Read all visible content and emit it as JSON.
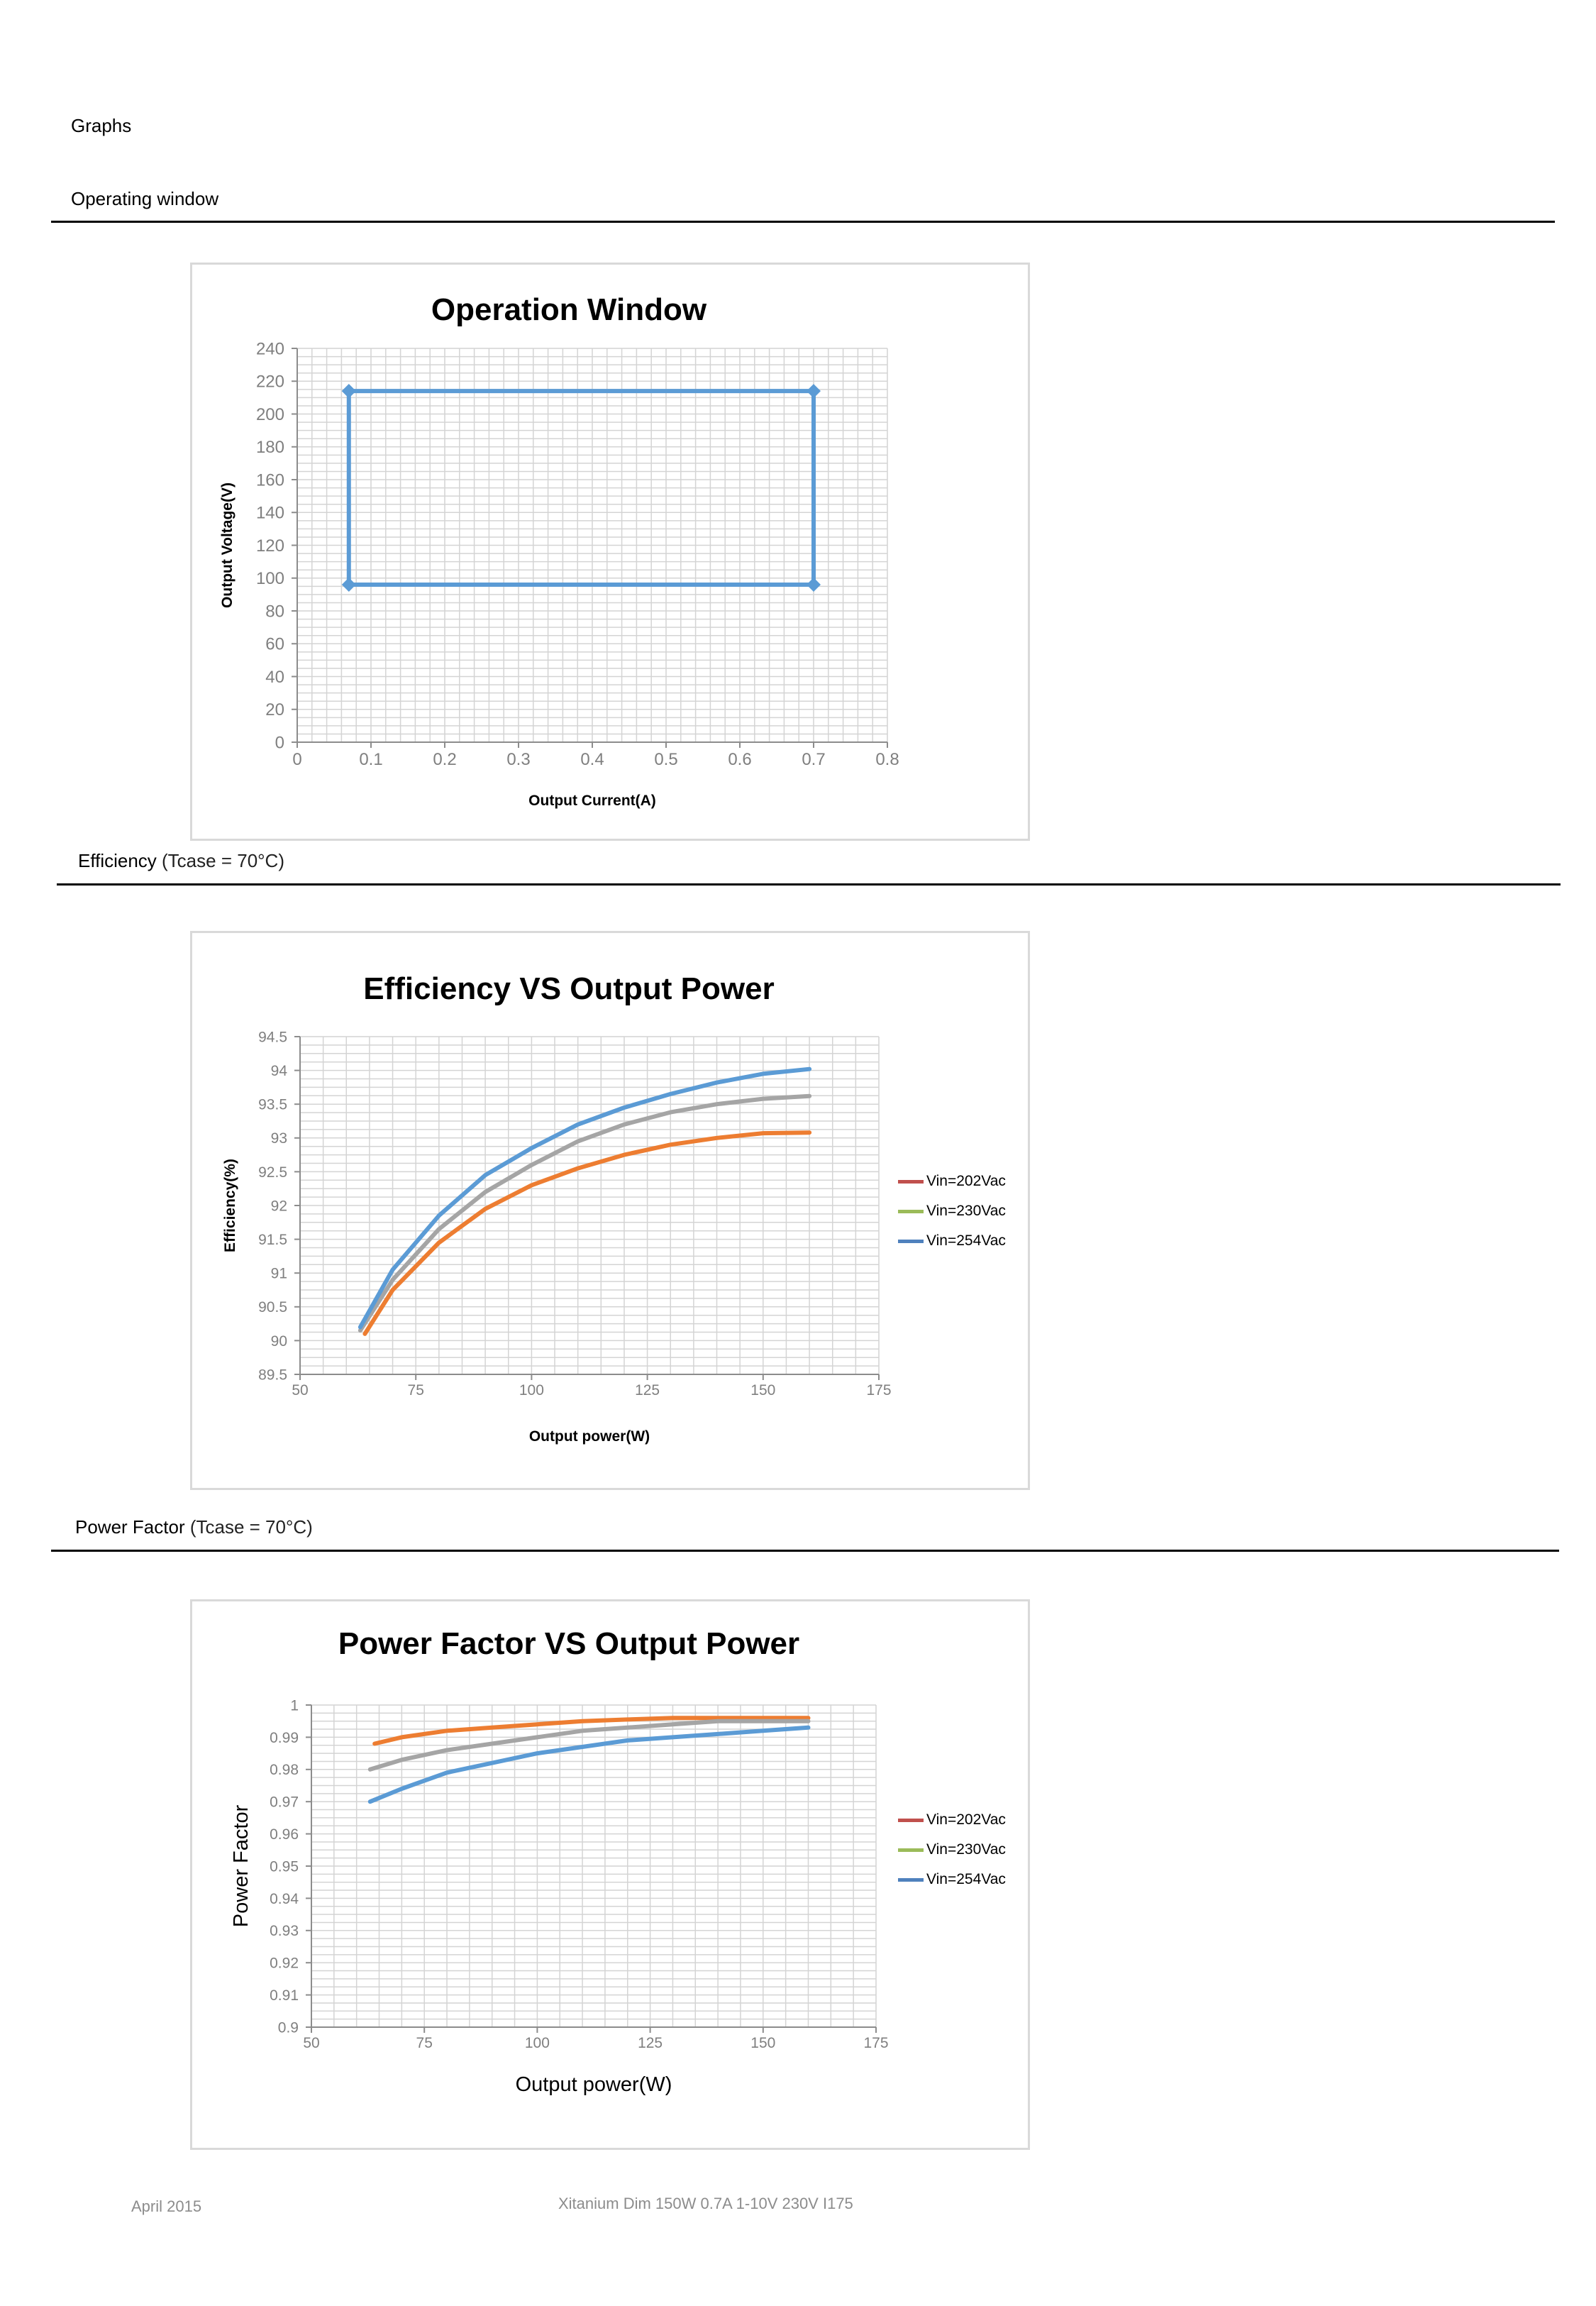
{
  "page": {
    "heading": "Graphs",
    "sections": [
      {
        "title": "Operating window",
        "note": ""
      },
      {
        "title": "Efficiency",
        "note": " (Tcase = 70°C)"
      },
      {
        "title": "Power Factor",
        "note": " (Tcase = 70°C)"
      }
    ],
    "footer": {
      "date": "April 2015",
      "product": "Xitanium Dim 150W 0.7A 1-10V 230V I175"
    }
  },
  "colors": {
    "grid": "#d4d4d4",
    "axis": "#8c8c8c",
    "tick_text": "#7f7f7f",
    "v202": "#ed7d31",
    "v230": "#a5a5a5",
    "v254": "#5b9bd5",
    "legend202": "#c0504d",
    "legend230": "#9bbb59",
    "legend254": "#4f81bd"
  },
  "chart_data": [
    {
      "type": "line",
      "title": "Operation Window",
      "xlabel": "Output Current(A)",
      "ylabel": "Output Voltage(V)",
      "xlim": [
        0,
        0.8
      ],
      "ylim": [
        0,
        240
      ],
      "xticks": [
        "0",
        "0.1",
        "0.2",
        "0.3",
        "0.4",
        "0.5",
        "0.6",
        "0.7",
        "0.8"
      ],
      "yticks": [
        "0",
        "20",
        "40",
        "60",
        "80",
        "100",
        "120",
        "140",
        "160",
        "180",
        "200",
        "220",
        "240"
      ],
      "grid": true,
      "legend": "none",
      "series": [
        {
          "color": "#5b9bd5",
          "markers": true,
          "x": [
            0.07,
            0.7,
            0.7,
            0.07,
            0.07
          ],
          "y": [
            214,
            214,
            96,
            96,
            214
          ]
        }
      ]
    },
    {
      "type": "line",
      "title": "Efficiency VS Output Power",
      "xlabel": "Output power(W)",
      "ylabel": "Efficiency(%)",
      "xlim": [
        50,
        175
      ],
      "ylim": [
        89.5,
        94.5
      ],
      "xticks": [
        "50",
        "75",
        "100",
        "125",
        "150",
        "175"
      ],
      "yticks": [
        "89.5",
        "90",
        "90.5",
        "91",
        "91.5",
        "92",
        "92.5",
        "93",
        "93.5",
        "94",
        "94.5"
      ],
      "grid": true,
      "legend": "right",
      "series": [
        {
          "name": "Vin=202Vac",
          "color": "#ed7d31",
          "x": [
            64,
            70,
            80,
            90,
            100,
            110,
            120,
            130,
            140,
            150,
            160
          ],
          "y": [
            90.1,
            90.75,
            91.45,
            91.95,
            92.3,
            92.55,
            92.75,
            92.9,
            93.0,
            93.07,
            93.08
          ]
        },
        {
          "name": "Vin=230Vac",
          "color": "#a5a5a5",
          "x": [
            63,
            70,
            80,
            90,
            100,
            110,
            120,
            130,
            140,
            150,
            160
          ],
          "y": [
            90.15,
            90.9,
            91.65,
            92.2,
            92.6,
            92.95,
            93.2,
            93.38,
            93.5,
            93.58,
            93.62
          ]
        },
        {
          "name": "Vin=254Vac",
          "color": "#5b9bd5",
          "x": [
            63,
            70,
            80,
            90,
            100,
            110,
            120,
            130,
            140,
            150,
            160
          ],
          "y": [
            90.2,
            91.05,
            91.85,
            92.45,
            92.85,
            93.2,
            93.45,
            93.65,
            93.82,
            93.95,
            94.02
          ]
        }
      ]
    },
    {
      "type": "line",
      "title": "Power Factor VS Output Power",
      "xlabel": "Output power(W)",
      "ylabel": "Power Factor",
      "xlim": [
        50,
        175
      ],
      "ylim": [
        0.9,
        1.0
      ],
      "xticks": [
        "50",
        "75",
        "100",
        "125",
        "150",
        "175"
      ],
      "yticks": [
        "0.9",
        "0.91",
        "0.92",
        "0.93",
        "0.94",
        "0.95",
        "0.96",
        "0.97",
        "0.98",
        "0.99",
        "1"
      ],
      "grid": true,
      "legend": "right",
      "series": [
        {
          "name": "Vin=202Vac",
          "color": "#ed7d31",
          "x": [
            64,
            70,
            80,
            90,
            100,
            110,
            120,
            130,
            140,
            150,
            160
          ],
          "y": [
            0.988,
            0.99,
            0.992,
            0.993,
            0.994,
            0.995,
            0.9955,
            0.996,
            0.996,
            0.996,
            0.996
          ]
        },
        {
          "name": "Vin=230Vac",
          "color": "#a5a5a5",
          "x": [
            63,
            70,
            80,
            90,
            100,
            110,
            120,
            130,
            140,
            150,
            160
          ],
          "y": [
            0.98,
            0.983,
            0.986,
            0.988,
            0.99,
            0.992,
            0.993,
            0.994,
            0.995,
            0.995,
            0.995
          ]
        },
        {
          "name": "Vin=254Vac",
          "color": "#5b9bd5",
          "x": [
            63,
            70,
            80,
            90,
            100,
            110,
            120,
            130,
            140,
            150,
            160
          ],
          "y": [
            0.97,
            0.974,
            0.979,
            0.982,
            0.985,
            0.987,
            0.989,
            0.99,
            0.991,
            0.992,
            0.993
          ]
        }
      ]
    }
  ]
}
